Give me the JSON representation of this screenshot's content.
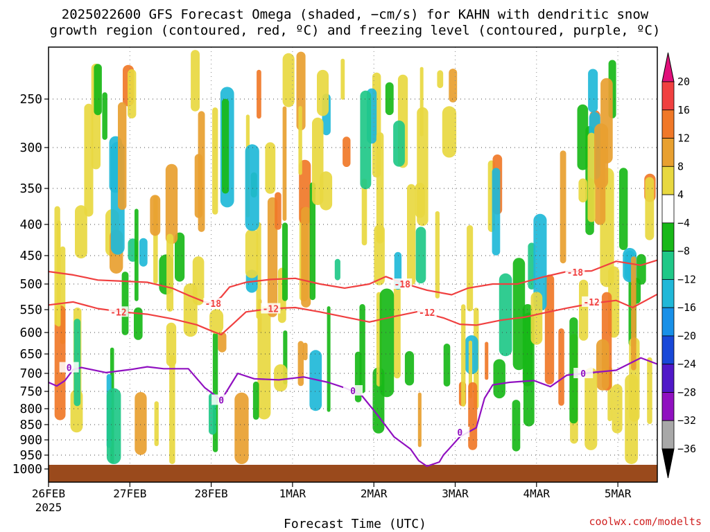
{
  "chart_data": {
    "type": "heatmap",
    "title_line1": "2025022600 GFS Forecast Omega (shaded, −cm/s) for KAHN with dendritic snow",
    "title_line2": "growth region (contoured, red, ºC) and freezing level (contoured, purple, ºC)",
    "xlabel": "Forecast Time (UTC)",
    "credit": "coolwx.com/modelts",
    "x_ticks": [
      "26FEB",
      "27FEB",
      "28FEB",
      "1MAR",
      "2MAR",
      "3MAR",
      "4MAR",
      "5MAR"
    ],
    "x_tick_sub": "2025",
    "y_ticks": [
      250,
      300,
      350,
      400,
      450,
      500,
      550,
      600,
      650,
      700,
      750,
      800,
      850,
      900,
      950,
      1000
    ],
    "ylim_hpa": [
      1000,
      200
    ],
    "x_range_days": [
      0,
      7.4
    ],
    "colorbar": {
      "labels": [
        "20",
        "16",
        "12",
        "8",
        "4",
        "−4",
        "−8",
        "−12",
        "−16",
        "−20",
        "−24",
        "−28",
        "−32",
        "−36"
      ],
      "colors": [
        "#e0107a",
        "#f04040",
        "#f07828",
        "#e8a030",
        "#e8d840",
        "#ffffff",
        "#18b818",
        "#20c888",
        "#20b8d8",
        "#1890e8",
        "#1848d8",
        "#5018c8",
        "#9010c0",
        "#a8a8a8",
        "#000000"
      ]
    },
    "contour_labels": {
      "dgz_upper": "-18",
      "dgz_lower": "-12",
      "freezing": "0"
    },
    "series": [
      {
        "name": "-18",
        "color": "#f04040",
        "x": [
          0,
          0.3,
          0.6,
          0.9,
          1.2,
          1.5,
          1.7,
          1.9,
          2.0,
          2.1,
          2.2,
          2.4,
          2.7,
          3.0,
          3.3,
          3.6,
          3.9,
          4.1,
          4.3,
          4.6,
          4.9,
          5.1,
          5.4,
          5.7,
          6.0,
          6.3,
          6.6,
          6.9,
          7.2,
          7.4
        ],
        "y": [
          478,
          484,
          493,
          495,
          497,
          508,
          522,
          535,
          538,
          525,
          506,
          497,
          492,
          490,
          500,
          508,
          500,
          487,
          498,
          512,
          521,
          508,
          500,
          500,
          488,
          478,
          477,
          460,
          467,
          458
        ]
      },
      {
        "name": "-12",
        "color": "#f04040",
        "x": [
          0,
          0.3,
          0.6,
          0.9,
          1.2,
          1.5,
          1.8,
          2.0,
          2.1,
          2.25,
          2.4,
          2.7,
          3.0,
          3.3,
          3.6,
          3.9,
          4.2,
          4.5,
          4.8,
          5.0,
          5.2,
          5.5,
          5.8,
          6.0,
          6.3,
          6.6,
          6.9,
          7.1,
          7.4
        ],
        "y": [
          541,
          535,
          548,
          555,
          560,
          570,
          583,
          598,
          605,
          580,
          555,
          548,
          546,
          555,
          566,
          577,
          565,
          554,
          568,
          582,
          584,
          573,
          566,
          558,
          547,
          538,
          532,
          546,
          520
        ]
      },
      {
        "name": "0",
        "color": "#9010c0",
        "x": [
          0,
          0.1,
          0.2,
          0.3,
          0.4,
          0.7,
          1.0,
          1.2,
          1.4,
          1.7,
          1.9,
          2.1,
          2.3,
          2.5,
          2.8,
          3.1,
          3.4,
          3.6,
          3.8,
          4.0,
          4.2,
          4.4,
          4.5,
          4.6,
          4.75,
          4.8,
          4.9,
          5.0,
          5.1,
          5.2,
          5.3,
          5.4,
          5.6,
          5.9,
          6.1,
          6.3,
          6.6,
          6.9,
          7.2,
          7.4
        ],
        "y": [
          725,
          735,
          720,
          690,
          685,
          698,
          690,
          683,
          688,
          688,
          740,
          775,
          700,
          715,
          718,
          710,
          725,
          740,
          760,
          820,
          890,
          930,
          970,
          990,
          975,
          950,
          920,
          890,
          875,
          860,
          770,
          732,
          725,
          720,
          737,
          705,
          698,
          692,
          660,
          676
        ]
      }
    ]
  }
}
